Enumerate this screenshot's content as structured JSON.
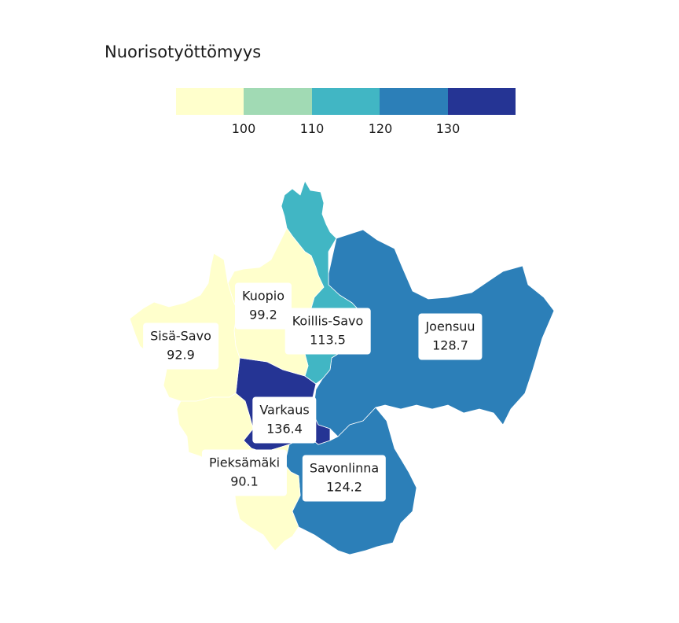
{
  "title": "Nuorisotyöttömyys",
  "legend": {
    "colors": [
      "#ffffcc",
      "#a1dab4",
      "#41b6c4",
      "#2c7fb8",
      "#253494"
    ],
    "ticks": [
      "100",
      "110",
      "120",
      "130"
    ]
  },
  "regions": [
    {
      "name": "Kuopio",
      "value": "99.2",
      "color": "#ffffcc"
    },
    {
      "name": "Sisä-Savo",
      "value": "92.9",
      "color": "#ffffcc"
    },
    {
      "name": "Koillis-Savo",
      "value": "113.5",
      "color": "#41b6c4"
    },
    {
      "name": "Joensuu",
      "value": "128.7",
      "color": "#2c7fb8"
    },
    {
      "name": "Varkaus",
      "value": "136.4",
      "color": "#253494"
    },
    {
      "name": "Pieksämäki",
      "value": "90.1",
      "color": "#ffffcc"
    },
    {
      "name": "Savonlinna",
      "value": "124.2",
      "color": "#2c7fb8"
    }
  ]
}
